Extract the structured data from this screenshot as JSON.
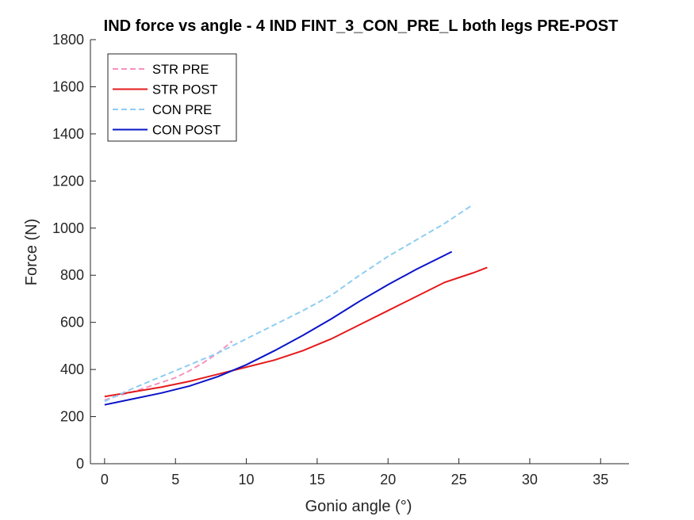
{
  "chart_data": {
    "type": "line",
    "title": "IND force vs angle - 4 IND FINT_3_CON_PRE_L both legs PRE-POST",
    "xlabel": "Gonio angle (°)",
    "ylabel": "Force (N)",
    "xlim": [
      -1,
      37
    ],
    "ylim": [
      0,
      1800
    ],
    "xticks": [
      0,
      5,
      10,
      15,
      20,
      25,
      30,
      35
    ],
    "yticks": [
      0,
      200,
      400,
      600,
      800,
      1000,
      1200,
      1400,
      1600,
      1800
    ],
    "grid": false,
    "legend_position": "top-left",
    "series": [
      {
        "name": "STR PRE",
        "style": "dashed",
        "color": "#f592be",
        "x": [
          0,
          1,
          2,
          3,
          4,
          5,
          6,
          7,
          8,
          9
        ],
        "y": [
          270,
          290,
          305,
          325,
          345,
          365,
          395,
          430,
          470,
          520
        ]
      },
      {
        "name": "STR POST",
        "style": "solid",
        "color": "#e41a1c",
        "x": [
          0,
          2,
          4,
          6,
          8,
          10,
          12,
          14,
          16,
          18,
          20,
          22,
          24,
          26,
          27
        ],
        "y": [
          285,
          305,
          325,
          350,
          380,
          410,
          440,
          480,
          530,
          590,
          650,
          710,
          770,
          810,
          833
        ]
      },
      {
        "name": "CON PRE",
        "style": "dashed",
        "color": "#8ecdf2",
        "x": [
          0,
          2,
          4,
          6,
          8,
          10,
          12,
          14,
          16,
          18,
          20,
          22,
          24,
          26
        ],
        "y": [
          265,
          320,
          370,
          420,
          470,
          530,
          590,
          650,
          715,
          800,
          880,
          950,
          1020,
          1100
        ]
      },
      {
        "name": "CON POST",
        "style": "solid",
        "color": "#0a14c8",
        "x": [
          0,
          2,
          4,
          6,
          8,
          10,
          12,
          14,
          16,
          18,
          20,
          22,
          24,
          24.5
        ],
        "y": [
          250,
          275,
          300,
          330,
          370,
          420,
          480,
          545,
          615,
          690,
          760,
          825,
          885,
          900
        ]
      }
    ]
  }
}
